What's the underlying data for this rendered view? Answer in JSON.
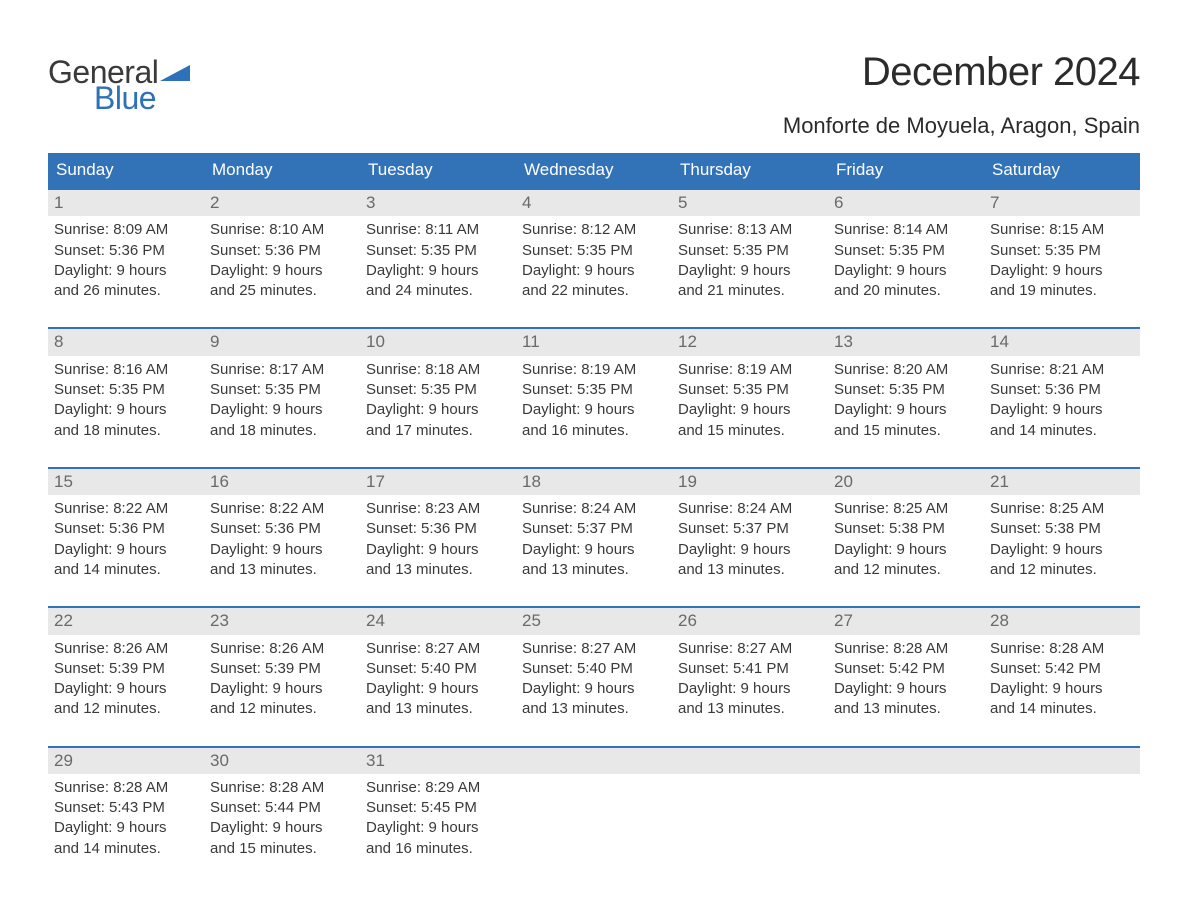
{
  "logo": {
    "part1": "General",
    "part2": "Blue"
  },
  "title": "December 2024",
  "location": "Monforte de Moyuela, Aragon, Spain",
  "colors": {
    "header_bg": "#3273b8",
    "header_text": "#ffffff",
    "daynum_bg": "#e8e8e8",
    "daynum_text": "#6a6a6a",
    "body_text": "#3a3a3a",
    "week_border": "#3273b8",
    "logo_general": "#3a3a3a",
    "logo_blue": "#2d72b8"
  },
  "daysOfWeek": [
    "Sunday",
    "Monday",
    "Tuesday",
    "Wednesday",
    "Thursday",
    "Friday",
    "Saturday"
  ],
  "weeks": [
    [
      {
        "n": "1",
        "sunrise": "Sunrise: 8:09 AM",
        "sunset": "Sunset: 5:36 PM",
        "d1": "Daylight: 9 hours",
        "d2": "and 26 minutes."
      },
      {
        "n": "2",
        "sunrise": "Sunrise: 8:10 AM",
        "sunset": "Sunset: 5:36 PM",
        "d1": "Daylight: 9 hours",
        "d2": "and 25 minutes."
      },
      {
        "n": "3",
        "sunrise": "Sunrise: 8:11 AM",
        "sunset": "Sunset: 5:35 PM",
        "d1": "Daylight: 9 hours",
        "d2": "and 24 minutes."
      },
      {
        "n": "4",
        "sunrise": "Sunrise: 8:12 AM",
        "sunset": "Sunset: 5:35 PM",
        "d1": "Daylight: 9 hours",
        "d2": "and 22 minutes."
      },
      {
        "n": "5",
        "sunrise": "Sunrise: 8:13 AM",
        "sunset": "Sunset: 5:35 PM",
        "d1": "Daylight: 9 hours",
        "d2": "and 21 minutes."
      },
      {
        "n": "6",
        "sunrise": "Sunrise: 8:14 AM",
        "sunset": "Sunset: 5:35 PM",
        "d1": "Daylight: 9 hours",
        "d2": "and 20 minutes."
      },
      {
        "n": "7",
        "sunrise": "Sunrise: 8:15 AM",
        "sunset": "Sunset: 5:35 PM",
        "d1": "Daylight: 9 hours",
        "d2": "and 19 minutes."
      }
    ],
    [
      {
        "n": "8",
        "sunrise": "Sunrise: 8:16 AM",
        "sunset": "Sunset: 5:35 PM",
        "d1": "Daylight: 9 hours",
        "d2": "and 18 minutes."
      },
      {
        "n": "9",
        "sunrise": "Sunrise: 8:17 AM",
        "sunset": "Sunset: 5:35 PM",
        "d1": "Daylight: 9 hours",
        "d2": "and 18 minutes."
      },
      {
        "n": "10",
        "sunrise": "Sunrise: 8:18 AM",
        "sunset": "Sunset: 5:35 PM",
        "d1": "Daylight: 9 hours",
        "d2": "and 17 minutes."
      },
      {
        "n": "11",
        "sunrise": "Sunrise: 8:19 AM",
        "sunset": "Sunset: 5:35 PM",
        "d1": "Daylight: 9 hours",
        "d2": "and 16 minutes."
      },
      {
        "n": "12",
        "sunrise": "Sunrise: 8:19 AM",
        "sunset": "Sunset: 5:35 PM",
        "d1": "Daylight: 9 hours",
        "d2": "and 15 minutes."
      },
      {
        "n": "13",
        "sunrise": "Sunrise: 8:20 AM",
        "sunset": "Sunset: 5:35 PM",
        "d1": "Daylight: 9 hours",
        "d2": "and 15 minutes."
      },
      {
        "n": "14",
        "sunrise": "Sunrise: 8:21 AM",
        "sunset": "Sunset: 5:36 PM",
        "d1": "Daylight: 9 hours",
        "d2": "and 14 minutes."
      }
    ],
    [
      {
        "n": "15",
        "sunrise": "Sunrise: 8:22 AM",
        "sunset": "Sunset: 5:36 PM",
        "d1": "Daylight: 9 hours",
        "d2": "and 14 minutes."
      },
      {
        "n": "16",
        "sunrise": "Sunrise: 8:22 AM",
        "sunset": "Sunset: 5:36 PM",
        "d1": "Daylight: 9 hours",
        "d2": "and 13 minutes."
      },
      {
        "n": "17",
        "sunrise": "Sunrise: 8:23 AM",
        "sunset": "Sunset: 5:36 PM",
        "d1": "Daylight: 9 hours",
        "d2": "and 13 minutes."
      },
      {
        "n": "18",
        "sunrise": "Sunrise: 8:24 AM",
        "sunset": "Sunset: 5:37 PM",
        "d1": "Daylight: 9 hours",
        "d2": "and 13 minutes."
      },
      {
        "n": "19",
        "sunrise": "Sunrise: 8:24 AM",
        "sunset": "Sunset: 5:37 PM",
        "d1": "Daylight: 9 hours",
        "d2": "and 13 minutes."
      },
      {
        "n": "20",
        "sunrise": "Sunrise: 8:25 AM",
        "sunset": "Sunset: 5:38 PM",
        "d1": "Daylight: 9 hours",
        "d2": "and 12 minutes."
      },
      {
        "n": "21",
        "sunrise": "Sunrise: 8:25 AM",
        "sunset": "Sunset: 5:38 PM",
        "d1": "Daylight: 9 hours",
        "d2": "and 12 minutes."
      }
    ],
    [
      {
        "n": "22",
        "sunrise": "Sunrise: 8:26 AM",
        "sunset": "Sunset: 5:39 PM",
        "d1": "Daylight: 9 hours",
        "d2": "and 12 minutes."
      },
      {
        "n": "23",
        "sunrise": "Sunrise: 8:26 AM",
        "sunset": "Sunset: 5:39 PM",
        "d1": "Daylight: 9 hours",
        "d2": "and 12 minutes."
      },
      {
        "n": "24",
        "sunrise": "Sunrise: 8:27 AM",
        "sunset": "Sunset: 5:40 PM",
        "d1": "Daylight: 9 hours",
        "d2": "and 13 minutes."
      },
      {
        "n": "25",
        "sunrise": "Sunrise: 8:27 AM",
        "sunset": "Sunset: 5:40 PM",
        "d1": "Daylight: 9 hours",
        "d2": "and 13 minutes."
      },
      {
        "n": "26",
        "sunrise": "Sunrise: 8:27 AM",
        "sunset": "Sunset: 5:41 PM",
        "d1": "Daylight: 9 hours",
        "d2": "and 13 minutes."
      },
      {
        "n": "27",
        "sunrise": "Sunrise: 8:28 AM",
        "sunset": "Sunset: 5:42 PM",
        "d1": "Daylight: 9 hours",
        "d2": "and 13 minutes."
      },
      {
        "n": "28",
        "sunrise": "Sunrise: 8:28 AM",
        "sunset": "Sunset: 5:42 PM",
        "d1": "Daylight: 9 hours",
        "d2": "and 14 minutes."
      }
    ],
    [
      {
        "n": "29",
        "sunrise": "Sunrise: 8:28 AM",
        "sunset": "Sunset: 5:43 PM",
        "d1": "Daylight: 9 hours",
        "d2": "and 14 minutes."
      },
      {
        "n": "30",
        "sunrise": "Sunrise: 8:28 AM",
        "sunset": "Sunset: 5:44 PM",
        "d1": "Daylight: 9 hours",
        "d2": "and 15 minutes."
      },
      {
        "n": "31",
        "sunrise": "Sunrise: 8:29 AM",
        "sunset": "Sunset: 5:45 PM",
        "d1": "Daylight: 9 hours",
        "d2": "and 16 minutes."
      },
      {
        "empty": true
      },
      {
        "empty": true
      },
      {
        "empty": true
      },
      {
        "empty": true
      }
    ]
  ]
}
